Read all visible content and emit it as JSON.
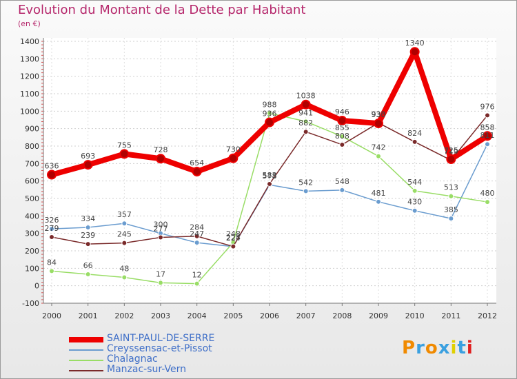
{
  "title": "Evolution du Montant de la Dette par Habitant",
  "subtitle": "(en €)",
  "logo_text": "Proxiti",
  "chart_data": {
    "type": "line",
    "title": "Evolution du Montant de la Dette par Habitant",
    "ylabel": "(en €)",
    "xlabel": "",
    "ylim": [
      -100,
      1400
    ],
    "yticks": [
      "-100",
      "0",
      "100",
      "200",
      "300",
      "400",
      "500",
      "600",
      "700",
      "800",
      "900",
      "1000",
      "1100",
      "1200",
      "1300",
      "1400"
    ],
    "categories": [
      "2000",
      "2001",
      "2002",
      "2003",
      "2004",
      "2005",
      "2006",
      "2007",
      "2008",
      "2009",
      "2010",
      "2011",
      "2012"
    ],
    "grid": "horizontal dotted",
    "legend_position": "bottom-left",
    "series": [
      {
        "name": "Creyssensac-et-Pissot",
        "color": "#6a9ccf",
        "values": [
          326,
          334,
          357,
          300,
          247,
          224,
          578,
          542,
          548,
          481,
          430,
          385,
          811
        ]
      },
      {
        "name": "Chalagnac",
        "color": "#99dd66",
        "values": [
          84,
          66,
          48,
          17,
          12,
          248,
          988,
          941,
          855,
          742,
          544,
          513,
          480
        ]
      },
      {
        "name": "Manzac-sur-Vern",
        "color": "#7a2a2a",
        "values": [
          279,
          239,
          245,
          277,
          284,
          225,
          583,
          882,
          808,
          933,
          824,
          719,
          976
        ]
      },
      {
        "name": "SAINT-PAUL-DE-SERRE",
        "color": "#ee0000",
        "values": [
          636,
          693,
          755,
          728,
          654,
          730,
          936,
          1038,
          946,
          930,
          1340,
          725,
          858
        ]
      }
    ],
    "value_labels": {
      "Creyssensac-et-Pissot": [
        "326",
        "334",
        "357",
        "300",
        "247",
        "224",
        "578",
        "542",
        "548",
        "481",
        "430",
        "385",
        "811"
      ],
      "Chalagnac": [
        "84",
        "66",
        "48",
        "17",
        "12",
        "248",
        "988",
        "941",
        "855",
        "742",
        "544",
        "513",
        "480"
      ],
      "Manzac-sur-Vern": [
        "279",
        "239",
        "245",
        "277",
        "284",
        "225",
        "583",
        "882",
        "808",
        "933",
        "824",
        "719",
        "976"
      ],
      "SAINT-PAUL-DE-SERRE": [
        "636",
        "693",
        "755",
        "728",
        "654",
        "730",
        "936",
        "1038",
        "946",
        "930",
        "1340",
        "725",
        "858"
      ]
    }
  },
  "legend": [
    {
      "label": "SAINT-PAUL-DE-SERRE",
      "color": "#ee0000",
      "thickness": 8
    },
    {
      "label": "Creyssensac-et-Pissot",
      "color": "#6a9ccf",
      "thickness": 2
    },
    {
      "label": "Chalagnac",
      "color": "#99dd66",
      "thickness": 2
    },
    {
      "label": "Manzac-sur-Vern",
      "color": "#7a2a2a",
      "thickness": 2
    }
  ]
}
